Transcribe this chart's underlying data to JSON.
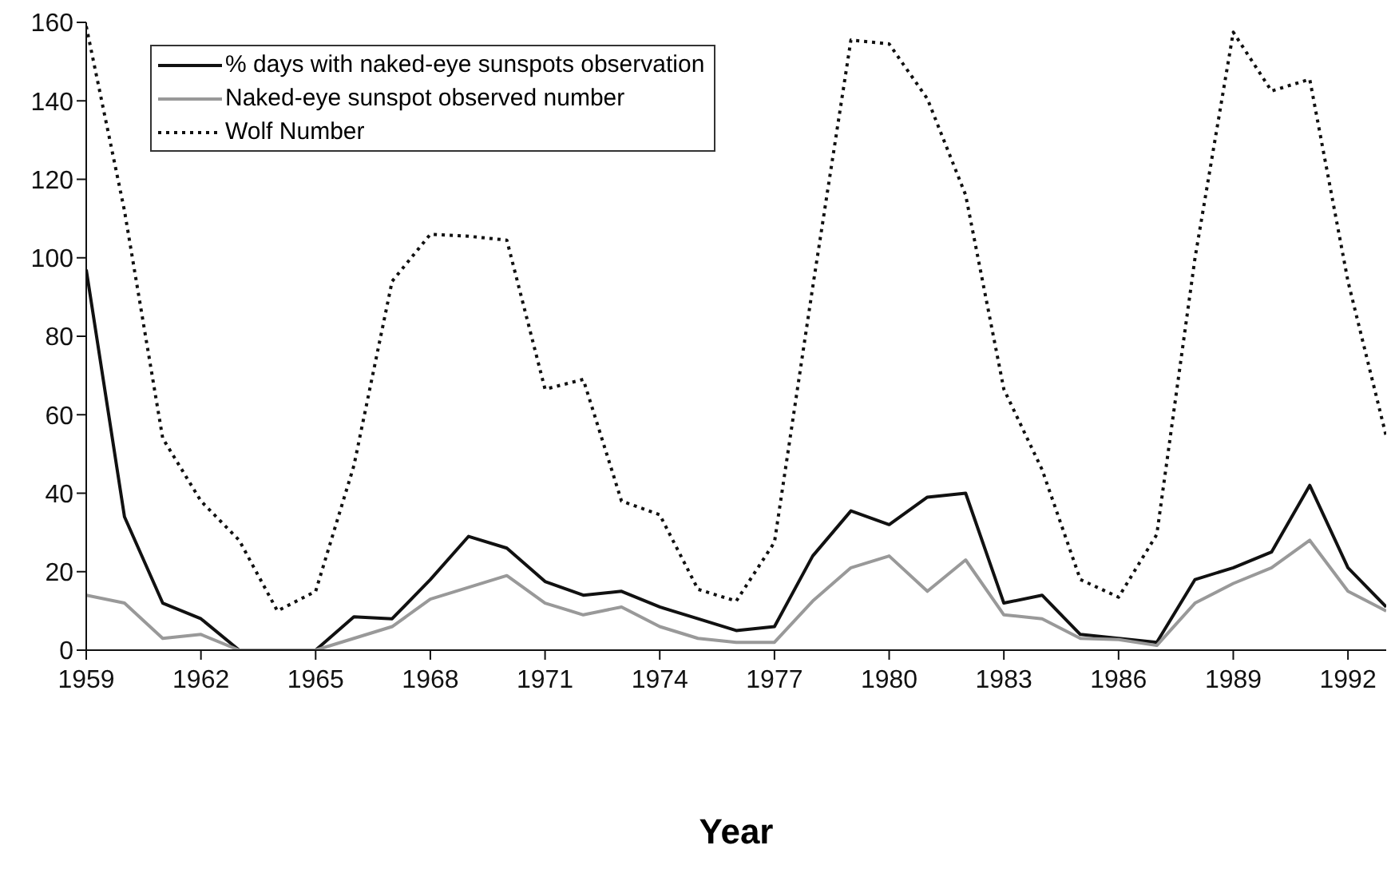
{
  "chart_data": {
    "type": "line",
    "xlabel": "Year",
    "x": [
      1959,
      1960,
      1961,
      1962,
      1963,
      1964,
      1965,
      1966,
      1967,
      1968,
      1969,
      1970,
      1971,
      1972,
      1973,
      1974,
      1975,
      1976,
      1977,
      1978,
      1979,
      1980,
      1981,
      1982,
      1983,
      1984,
      1985,
      1986,
      1987,
      1988,
      1989,
      1990,
      1991,
      1992,
      1993
    ],
    "series": [
      {
        "name": "% days with naked-eye sunspots observation",
        "color": "#111111",
        "line_style": "solid",
        "values": [
          97,
          34,
          12,
          8,
          0,
          0,
          0,
          8.5,
          8,
          18,
          29,
          26,
          17.5,
          14,
          15,
          11,
          8,
          5,
          6,
          24,
          35.5,
          32,
          39,
          40,
          12,
          14,
          4,
          3,
          2,
          18,
          21,
          25,
          42,
          21,
          11
        ]
      },
      {
        "name": "Naked-eye sunspot observed number",
        "color": "#999999",
        "line_style": "solid",
        "values": [
          14,
          12,
          3,
          4,
          0,
          0,
          0,
          3,
          6,
          13,
          16,
          19,
          12,
          9,
          11,
          6,
          3,
          2,
          2,
          12.5,
          21,
          24,
          15,
          23,
          9,
          8,
          3,
          2.7,
          1.2,
          12,
          17,
          21,
          28,
          15,
          10
        ]
      },
      {
        "name": "Wolf Number",
        "color": "#111111",
        "line_style": "dotted",
        "values": [
          159,
          112,
          54,
          38,
          28,
          10,
          15,
          47,
          94,
          106,
          105.5,
          104.5,
          66.5,
          69,
          38,
          34.5,
          15.5,
          12.5,
          27.5,
          92.5,
          155.5,
          154.5,
          140.5,
          116,
          66.5,
          46,
          18,
          13.5,
          29.5,
          100,
          157.5,
          142.5,
          145.5,
          94,
          54.5
        ]
      }
    ],
    "xlim": [
      1959,
      1993
    ],
    "xticks": [
      1959,
      1962,
      1965,
      1968,
      1971,
      1974,
      1977,
      1980,
      1983,
      1986,
      1989,
      1992
    ],
    "ylim": [
      0,
      160
    ],
    "yticks": [
      0,
      20,
      40,
      60,
      80,
      100,
      120,
      140,
      160
    ],
    "legend": "top left",
    "marker": "none"
  }
}
